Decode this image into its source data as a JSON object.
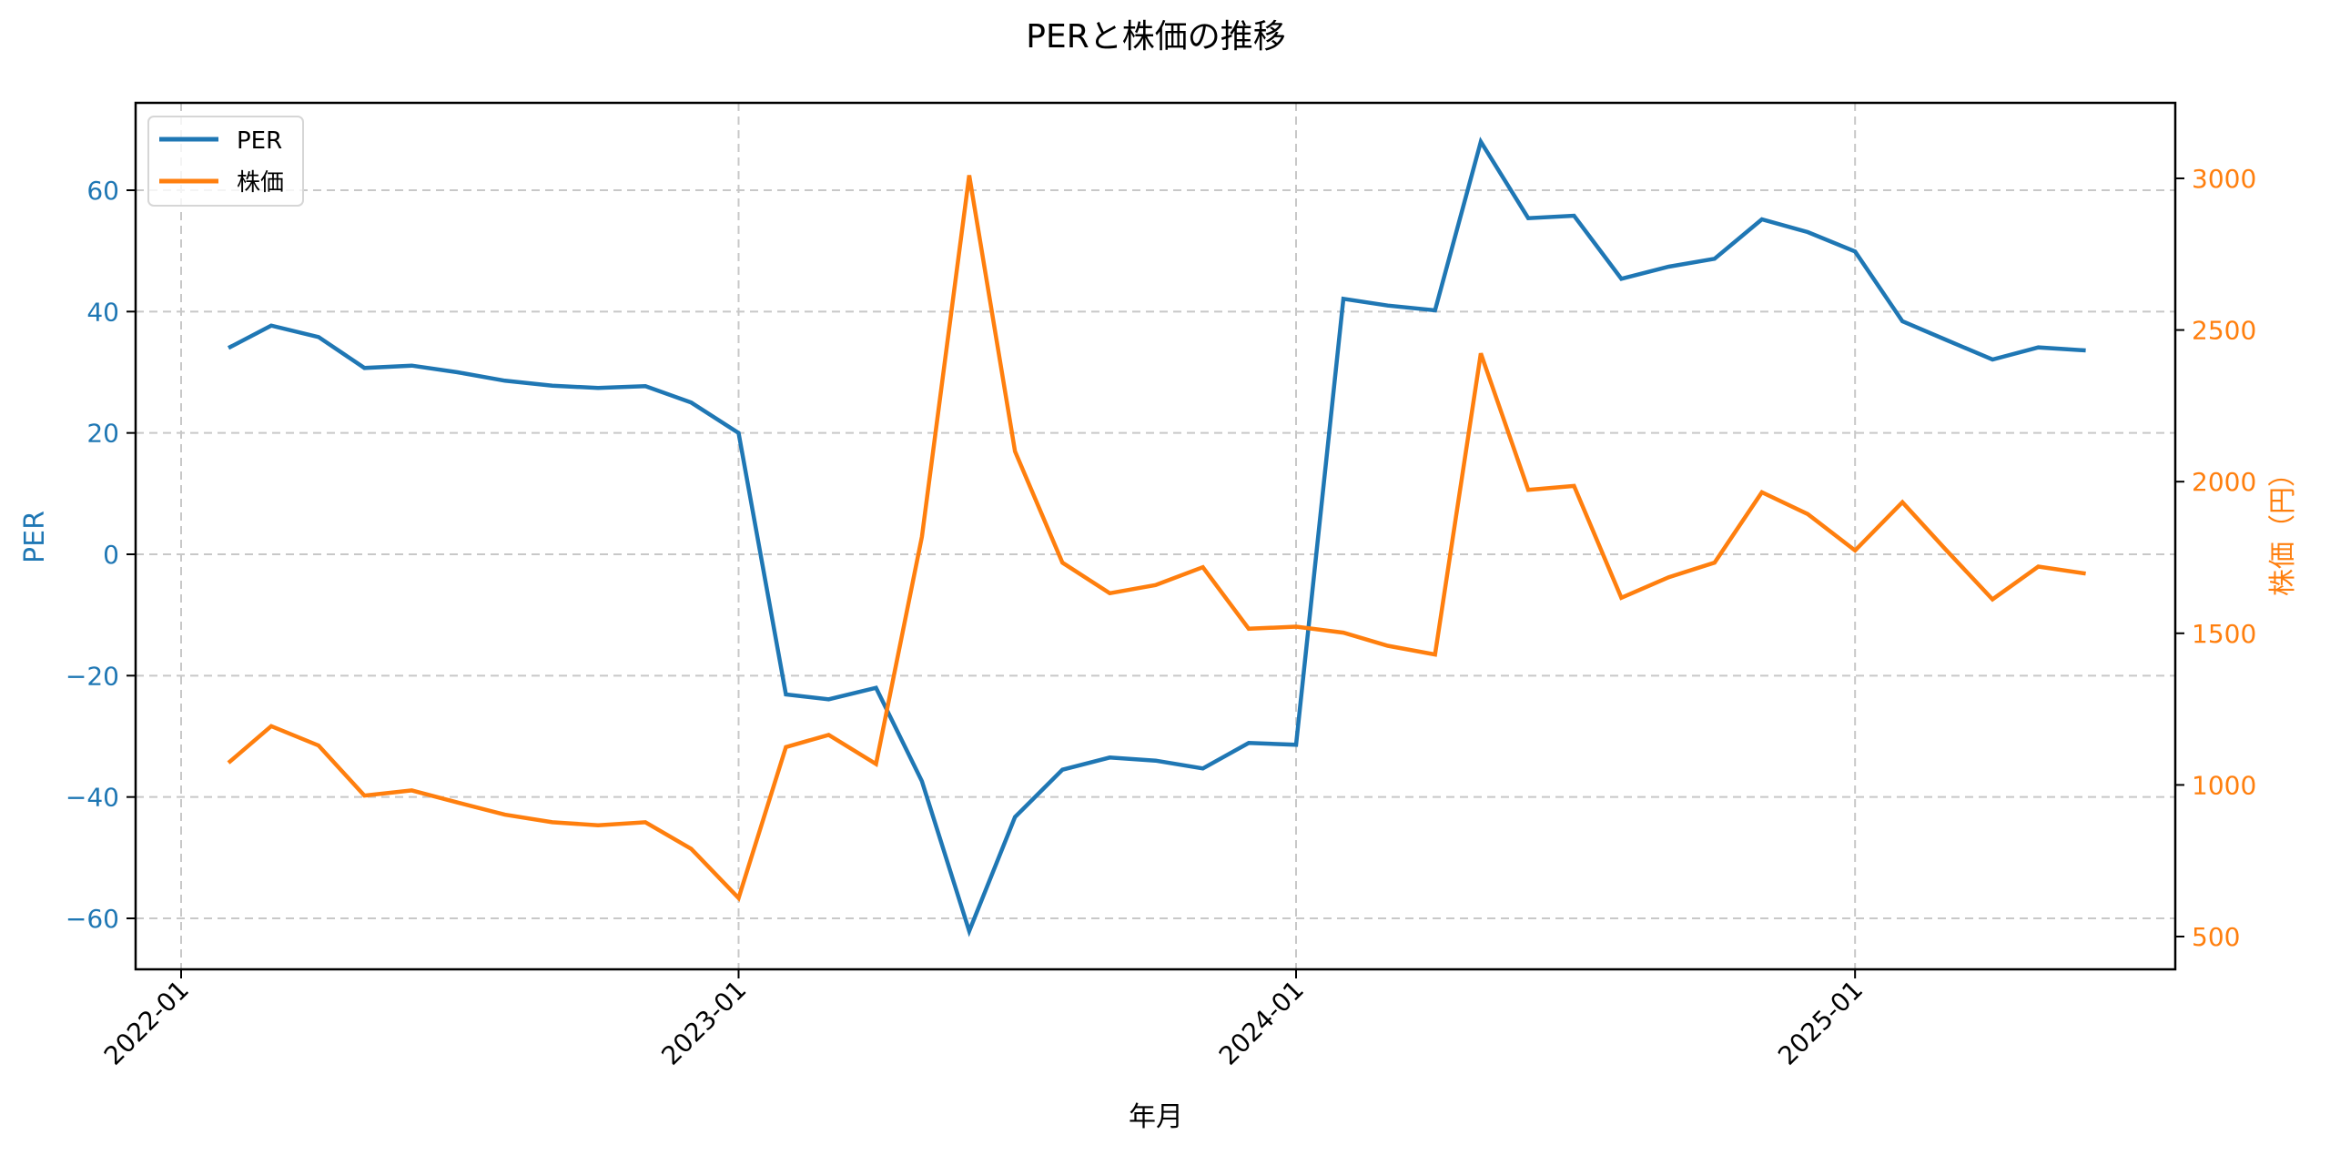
{
  "chart_data": {
    "type": "line",
    "title": "PERと株価の推移",
    "xlabel": "年月",
    "ylabel_left": "PER",
    "ylabel_right": "株価（円）",
    "x_ticks": [
      "2022-01",
      "2023-01",
      "2024-01",
      "2025-01"
    ],
    "y_left_ticks": [
      60,
      40,
      20,
      0,
      -20,
      -40,
      -60
    ],
    "y_left_tick_labels": [
      "60",
      "40",
      "20",
      "0",
      "−20",
      "−40",
      "−60"
    ],
    "y_right_ticks": [
      3000,
      2500,
      2000,
      1500,
      1000,
      500
    ],
    "y_right_tick_labels": [
      "3000",
      "2500",
      "2000",
      "1500",
      "1000",
      "500"
    ],
    "ylim_left": [
      -68.4,
      74.4
    ],
    "ylim_right": [
      392,
      3249
    ],
    "grid": true,
    "legend_position": "upper left",
    "x": [
      "2022-02",
      "2022-03",
      "2022-04",
      "2022-05",
      "2022-06",
      "2022-07",
      "2022-08",
      "2022-09",
      "2022-10",
      "2022-11",
      "2022-12",
      "2023-01",
      "2023-02",
      "2023-03",
      "2023-04",
      "2023-05",
      "2023-06",
      "2023-07",
      "2023-08",
      "2023-09",
      "2023-10",
      "2023-11",
      "2023-12",
      "2024-01",
      "2024-02",
      "2024-03",
      "2024-04",
      "2024-05",
      "2024-06",
      "2024-07",
      "2024-08",
      "2024-09",
      "2024-10",
      "2024-11",
      "2024-12",
      "2025-01",
      "2025-02",
      "2025-03",
      "2025-04",
      "2025-05",
      "2025-06"
    ],
    "series": [
      {
        "name": "PER",
        "axis": "left",
        "color": "#1f77b4",
        "values": [
          34.0,
          37.7,
          35.8,
          30.7,
          31.1,
          30.0,
          28.6,
          27.8,
          27.4,
          27.7,
          25.0,
          20.0,
          -23.1,
          -23.9,
          -22.0,
          -37.4,
          -62.1,
          -43.3,
          -35.5,
          -33.5,
          -34.0,
          -35.3,
          -31.1,
          -31.4,
          42.1,
          41.0,
          40.2,
          68.0,
          55.4,
          55.8,
          45.4,
          47.4,
          48.7,
          55.2,
          53.1,
          49.9,
          38.4,
          35.4,
          32.1,
          34.1,
          33.6
        ]
      },
      {
        "name": "株価",
        "axis": "right",
        "color": "#ff7f0e",
        "values": [
          1073,
          1194,
          1130,
          965,
          982,
          942,
          902,
          877,
          867,
          877,
          789,
          627,
          1125,
          1165,
          1069,
          1818,
          3010,
          2100,
          1733,
          1632,
          1659,
          1718,
          1515,
          1522,
          1502,
          1459,
          1430,
          2423,
          1973,
          1986,
          1617,
          1685,
          1733,
          1965,
          1893,
          1773,
          1932,
          1778,
          1612,
          1720,
          1697
        ]
      }
    ]
  },
  "legend": {
    "items": [
      {
        "label": "PER",
        "color": "#1f77b4"
      },
      {
        "label": "株価",
        "color": "#ff7f0e"
      }
    ]
  }
}
